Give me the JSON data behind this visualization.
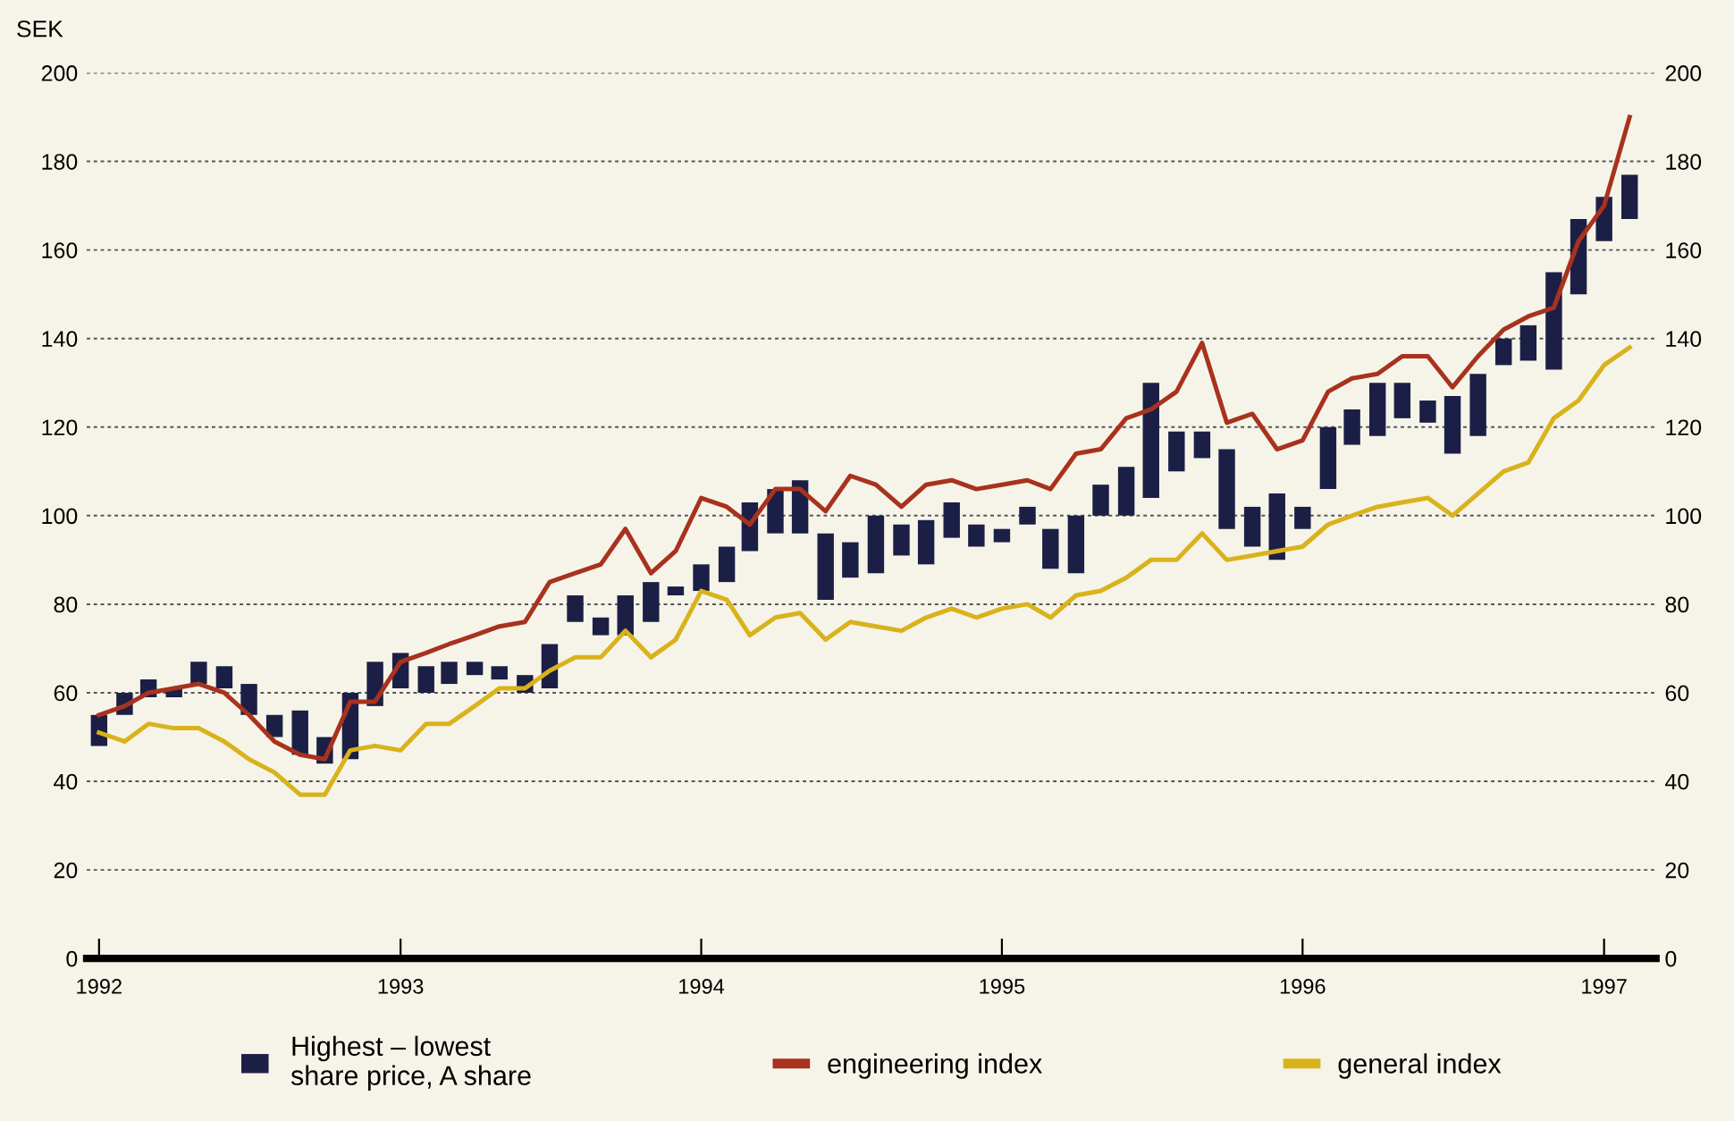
{
  "chart_data": {
    "type": "bar",
    "ylabel": "SEK",
    "x": [
      "1992-01",
      "1992-02",
      "1992-03",
      "1992-04",
      "1992-05",
      "1992-06",
      "1992-07",
      "1992-08",
      "1992-09",
      "1992-10",
      "1992-11",
      "1992-12",
      "1993-01",
      "1993-02",
      "1993-03",
      "1993-04",
      "1993-05",
      "1993-06",
      "1993-07",
      "1993-08",
      "1993-09",
      "1993-10",
      "1993-11",
      "1993-12",
      "1994-01",
      "1994-02",
      "1994-03",
      "1994-04",
      "1994-05",
      "1994-06",
      "1994-07",
      "1994-08",
      "1994-09",
      "1994-10",
      "1994-11",
      "1994-12",
      "1995-01",
      "1995-02",
      "1995-03",
      "1995-04",
      "1995-05",
      "1995-06",
      "1995-07",
      "1995-08",
      "1995-09",
      "1995-10",
      "1995-11",
      "1995-12",
      "1996-01",
      "1996-02",
      "1996-03",
      "1996-04",
      "1996-05",
      "1996-06",
      "1996-07",
      "1996-08",
      "1996-09",
      "1996-10",
      "1996-11",
      "1996-12",
      "1997-01",
      "1997-02"
    ],
    "series": [
      {
        "name": "Highest – lowest\nshare price, A share",
        "color": "#1c1f45",
        "base": [
          48,
          55,
          59,
          59,
          62,
          61,
          55,
          50,
          46,
          44,
          45,
          57,
          61,
          60,
          62,
          64,
          63,
          60,
          61,
          76,
          73,
          73,
          76,
          82,
          83,
          85,
          92,
          96,
          96,
          81,
          86,
          87,
          91,
          89,
          95,
          93,
          94,
          98,
          88,
          87,
          100,
          100,
          104,
          110,
          113,
          97,
          93,
          90,
          97,
          106,
          116,
          118,
          122,
          121,
          114,
          118,
          134,
          135,
          133,
          150,
          162,
          167
        ],
        "values": [
          7,
          5,
          4,
          2,
          5,
          5,
          7,
          5,
          10,
          6,
          15,
          10,
          8,
          6,
          5,
          3,
          3,
          4,
          10,
          6,
          4,
          9,
          9,
          2,
          6,
          8,
          11,
          10,
          12,
          15,
          8,
          13,
          7,
          10,
          8,
          5,
          3,
          4,
          9,
          13,
          7,
          11,
          26,
          9,
          6,
          18,
          9,
          15,
          5,
          14,
          8,
          12,
          8,
          5,
          13,
          14,
          6,
          8,
          22,
          17,
          10,
          10
        ]
      },
      {
        "name": "engineering index",
        "type": "line",
        "color": "#a8321e",
        "values": [
          55,
          57,
          60,
          61,
          62,
          60,
          55,
          49,
          46,
          45,
          58,
          58,
          67,
          69,
          71,
          73,
          75,
          76,
          85,
          87,
          89,
          97,
          87,
          92,
          104,
          102,
          98,
          106,
          106,
          101,
          109,
          107,
          102,
          107,
          108,
          106,
          107,
          108,
          106,
          114,
          115,
          122,
          124,
          128,
          139,
          121,
          123,
          115,
          117,
          128,
          131,
          132,
          136,
          136,
          129,
          136,
          142,
          145,
          147,
          162,
          170,
          190
        ]
      },
      {
        "name": "general index",
        "type": "line",
        "color": "#d9b21c",
        "values": [
          51,
          49,
          53,
          52,
          52,
          49,
          45,
          42,
          37,
          37,
          47,
          48,
          47,
          53,
          53,
          57,
          61,
          61,
          65,
          68,
          68,
          74,
          68,
          72,
          83,
          81,
          73,
          77,
          78,
          72,
          76,
          75,
          74,
          77,
          79,
          77,
          79,
          80,
          77,
          82,
          83,
          86,
          90,
          90,
          96,
          90,
          91,
          92,
          93,
          98,
          100,
          102,
          103,
          104,
          100,
          105,
          110,
          112,
          122,
          126,
          134,
          138
        ]
      }
    ],
    "xlim": [
      "1991-12-17",
      "1997-03-05"
    ],
    "xticks": [
      {
        "value": "1992-01",
        "label": "1992"
      },
      {
        "value": "1993-01",
        "label": "1993"
      },
      {
        "value": "1994-01",
        "label": "1994"
      },
      {
        "value": "1995-01",
        "label": "1995"
      },
      {
        "value": "1996-01",
        "label": "1996"
      },
      {
        "value": "1997-01",
        "label": "1997"
      }
    ],
    "ylim": [
      0,
      200
    ],
    "yticks": [
      0,
      20,
      40,
      60,
      80,
      100,
      120,
      140,
      160,
      180,
      200
    ],
    "y2lim": [
      0,
      200
    ],
    "y2ticks": [
      0,
      20,
      40,
      60,
      80,
      100,
      120,
      140,
      160,
      180,
      200
    ],
    "grid": "y",
    "legend": "bottom"
  }
}
